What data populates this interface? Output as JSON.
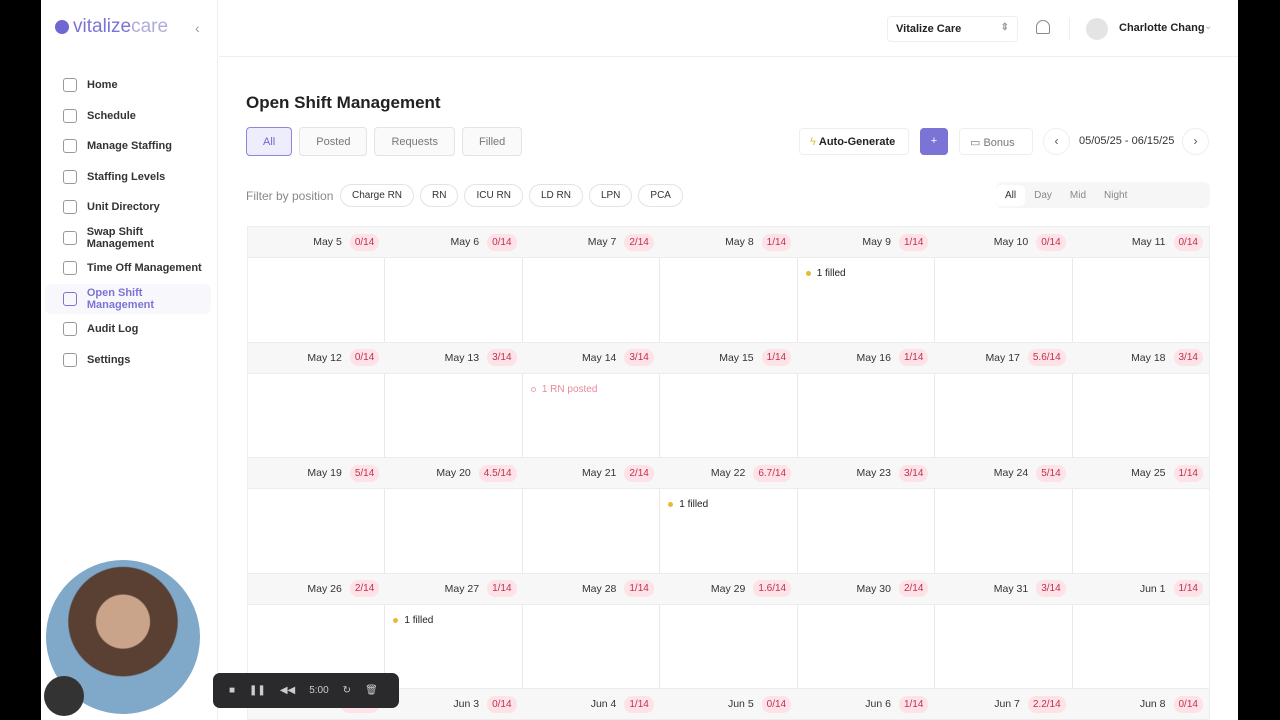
{
  "brand": {
    "name_a": "vitalize",
    "name_b": "care",
    "accent": "#7b74d6"
  },
  "sidebar": {
    "items": [
      {
        "label": "Home",
        "icon": "home-icon"
      },
      {
        "label": "Schedule",
        "icon": "calendar-icon"
      },
      {
        "label": "Manage Staffing",
        "icon": "scale-icon"
      },
      {
        "label": "Staffing Levels",
        "icon": "users-icon"
      },
      {
        "label": "Unit Directory",
        "icon": "user-circle-icon"
      },
      {
        "label": "Swap Shift Management",
        "icon": "swap-icon"
      },
      {
        "label": "Time Off Management",
        "icon": "calendar-x-icon"
      },
      {
        "label": "Open Shift Management",
        "icon": "calendar-plus-icon",
        "active": true
      },
      {
        "label": "Audit Log",
        "icon": "list-check-icon"
      },
      {
        "label": "Settings",
        "icon": "gear-icon"
      }
    ]
  },
  "topbar": {
    "org": "Vitalize Care",
    "user": "Charlotte Chang"
  },
  "page": {
    "title": "Open Shift Management",
    "tabs": [
      "All",
      "Posted",
      "Requests",
      "Filled"
    ],
    "auto_generate": "Auto-Generate",
    "add": "+",
    "bonus": "Bonus",
    "range": "05/05/25 - 06/15/25",
    "filter_label": "Filter by position",
    "positions": [
      "Charge RN",
      "RN",
      "ICU RN",
      "LD RN",
      "LPN",
      "PCA"
    ],
    "shifts": [
      "All",
      "Day",
      "Mid",
      "Night"
    ]
  },
  "weeks": [
    [
      {
        "date": "May 5",
        "ratio": "0/14"
      },
      {
        "date": "May 6",
        "ratio": "0/14"
      },
      {
        "date": "May 7",
        "ratio": "2/14"
      },
      {
        "date": "May 8",
        "ratio": "1/14"
      },
      {
        "date": "May 9",
        "ratio": "1/14",
        "event": {
          "type": "filled",
          "text": "1 filled"
        }
      },
      {
        "date": "May 10",
        "ratio": "0/14"
      },
      {
        "date": "May 11",
        "ratio": "0/14"
      }
    ],
    [
      {
        "date": "May 12",
        "ratio": "0/14"
      },
      {
        "date": "May 13",
        "ratio": "3/14"
      },
      {
        "date": "May 14",
        "ratio": "3/14",
        "event": {
          "type": "posted",
          "text": "1 RN posted"
        }
      },
      {
        "date": "May 15",
        "ratio": "1/14"
      },
      {
        "date": "May 16",
        "ratio": "1/14"
      },
      {
        "date": "May 17",
        "ratio": "5.6/14"
      },
      {
        "date": "May 18",
        "ratio": "3/14"
      }
    ],
    [
      {
        "date": "May 19",
        "ratio": "5/14"
      },
      {
        "date": "May 20",
        "ratio": "4.5/14"
      },
      {
        "date": "May 21",
        "ratio": "2/14"
      },
      {
        "date": "May 22",
        "ratio": "6.7/14",
        "event": {
          "type": "filled",
          "text": "1 filled"
        }
      },
      {
        "date": "May 23",
        "ratio": "3/14"
      },
      {
        "date": "May 24",
        "ratio": "5/14"
      },
      {
        "date": "May 25",
        "ratio": "1/14"
      }
    ],
    [
      {
        "date": "May 26",
        "ratio": "2/14"
      },
      {
        "date": "May 27",
        "ratio": "1/14",
        "event": {
          "type": "filled",
          "text": "1 filled"
        }
      },
      {
        "date": "May 28",
        "ratio": "1/14"
      },
      {
        "date": "May 29",
        "ratio": "1.6/14"
      },
      {
        "date": "May 30",
        "ratio": "2/14"
      },
      {
        "date": "May 31",
        "ratio": "3/14"
      },
      {
        "date": "Jun 1",
        "ratio": "1/14"
      }
    ],
    [
      {
        "date": "Jun 2",
        "ratio": "1.6/14"
      },
      {
        "date": "Jun 3",
        "ratio": "0/14"
      },
      {
        "date": "Jun 4",
        "ratio": "1/14"
      },
      {
        "date": "Jun 5",
        "ratio": "0/14"
      },
      {
        "date": "Jun 6",
        "ratio": "1/14"
      },
      {
        "date": "Jun 7",
        "ratio": "2.2/14"
      },
      {
        "date": "Jun 8",
        "ratio": "0/14"
      }
    ]
  ],
  "recorder": {
    "time": "5:00"
  }
}
